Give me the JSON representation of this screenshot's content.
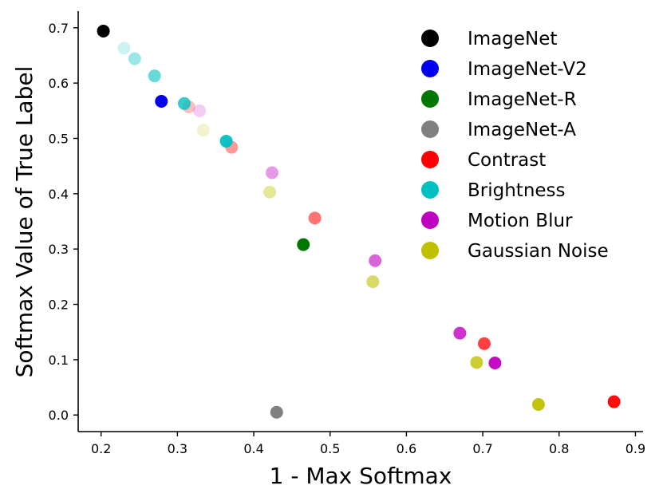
{
  "chart_data": {
    "type": "scatter",
    "title": "",
    "xlabel": "1 - Max Softmax",
    "ylabel": "Softmax Value of True Label",
    "xlim": [
      0.17,
      0.91
    ],
    "ylim": [
      -0.03,
      0.73
    ],
    "xticks": [
      "0.2",
      "0.3",
      "0.4",
      "0.5",
      "0.6",
      "0.7",
      "0.8",
      "0.9"
    ],
    "yticks": [
      "0.0",
      "0.1",
      "0.2",
      "0.3",
      "0.4",
      "0.5",
      "0.6",
      "0.7"
    ],
    "grid": false,
    "legend_position": "top-right",
    "series": [
      {
        "name": "ImageNet",
        "color": "#000000",
        "points": [
          {
            "x": 0.203,
            "y": 0.694,
            "alpha": 1.0
          }
        ]
      },
      {
        "name": "ImageNet-V2",
        "color": "#0000ee",
        "points": [
          {
            "x": 0.279,
            "y": 0.567,
            "alpha": 1.0
          }
        ]
      },
      {
        "name": "ImageNet-R",
        "color": "#007700",
        "points": [
          {
            "x": 0.465,
            "y": 0.308,
            "alpha": 1.0
          }
        ]
      },
      {
        "name": "ImageNet-A",
        "color": "#808080",
        "points": [
          {
            "x": 0.43,
            "y": 0.005,
            "alpha": 1.0
          }
        ]
      },
      {
        "name": "Contrast",
        "color": "#ff0000",
        "points": [
          {
            "x": 0.315,
            "y": 0.557,
            "alpha": 0.25
          },
          {
            "x": 0.371,
            "y": 0.484,
            "alpha": 0.4
          },
          {
            "x": 0.48,
            "y": 0.356,
            "alpha": 0.55
          },
          {
            "x": 0.702,
            "y": 0.129,
            "alpha": 0.75
          },
          {
            "x": 0.872,
            "y": 0.024,
            "alpha": 0.95
          }
        ]
      },
      {
        "name": "Brightness",
        "color": "#00c0c0",
        "points": [
          {
            "x": 0.23,
            "y": 0.663,
            "alpha": 0.2
          },
          {
            "x": 0.244,
            "y": 0.644,
            "alpha": 0.4
          },
          {
            "x": 0.27,
            "y": 0.613,
            "alpha": 0.6
          },
          {
            "x": 0.309,
            "y": 0.563,
            "alpha": 0.8
          },
          {
            "x": 0.364,
            "y": 0.495,
            "alpha": 0.95
          }
        ]
      },
      {
        "name": "Motion Blur",
        "color": "#c000c0",
        "points": [
          {
            "x": 0.329,
            "y": 0.55,
            "alpha": 0.2
          },
          {
            "x": 0.424,
            "y": 0.438,
            "alpha": 0.4
          },
          {
            "x": 0.559,
            "y": 0.279,
            "alpha": 0.6
          },
          {
            "x": 0.67,
            "y": 0.148,
            "alpha": 0.8
          },
          {
            "x": 0.716,
            "y": 0.094,
            "alpha": 0.95
          }
        ]
      },
      {
        "name": "Gaussian Noise",
        "color": "#c0c000",
        "points": [
          {
            "x": 0.334,
            "y": 0.515,
            "alpha": 0.2
          },
          {
            "x": 0.421,
            "y": 0.403,
            "alpha": 0.4
          },
          {
            "x": 0.556,
            "y": 0.241,
            "alpha": 0.6
          },
          {
            "x": 0.692,
            "y": 0.095,
            "alpha": 0.8
          },
          {
            "x": 0.773,
            "y": 0.019,
            "alpha": 0.95
          }
        ]
      }
    ]
  }
}
